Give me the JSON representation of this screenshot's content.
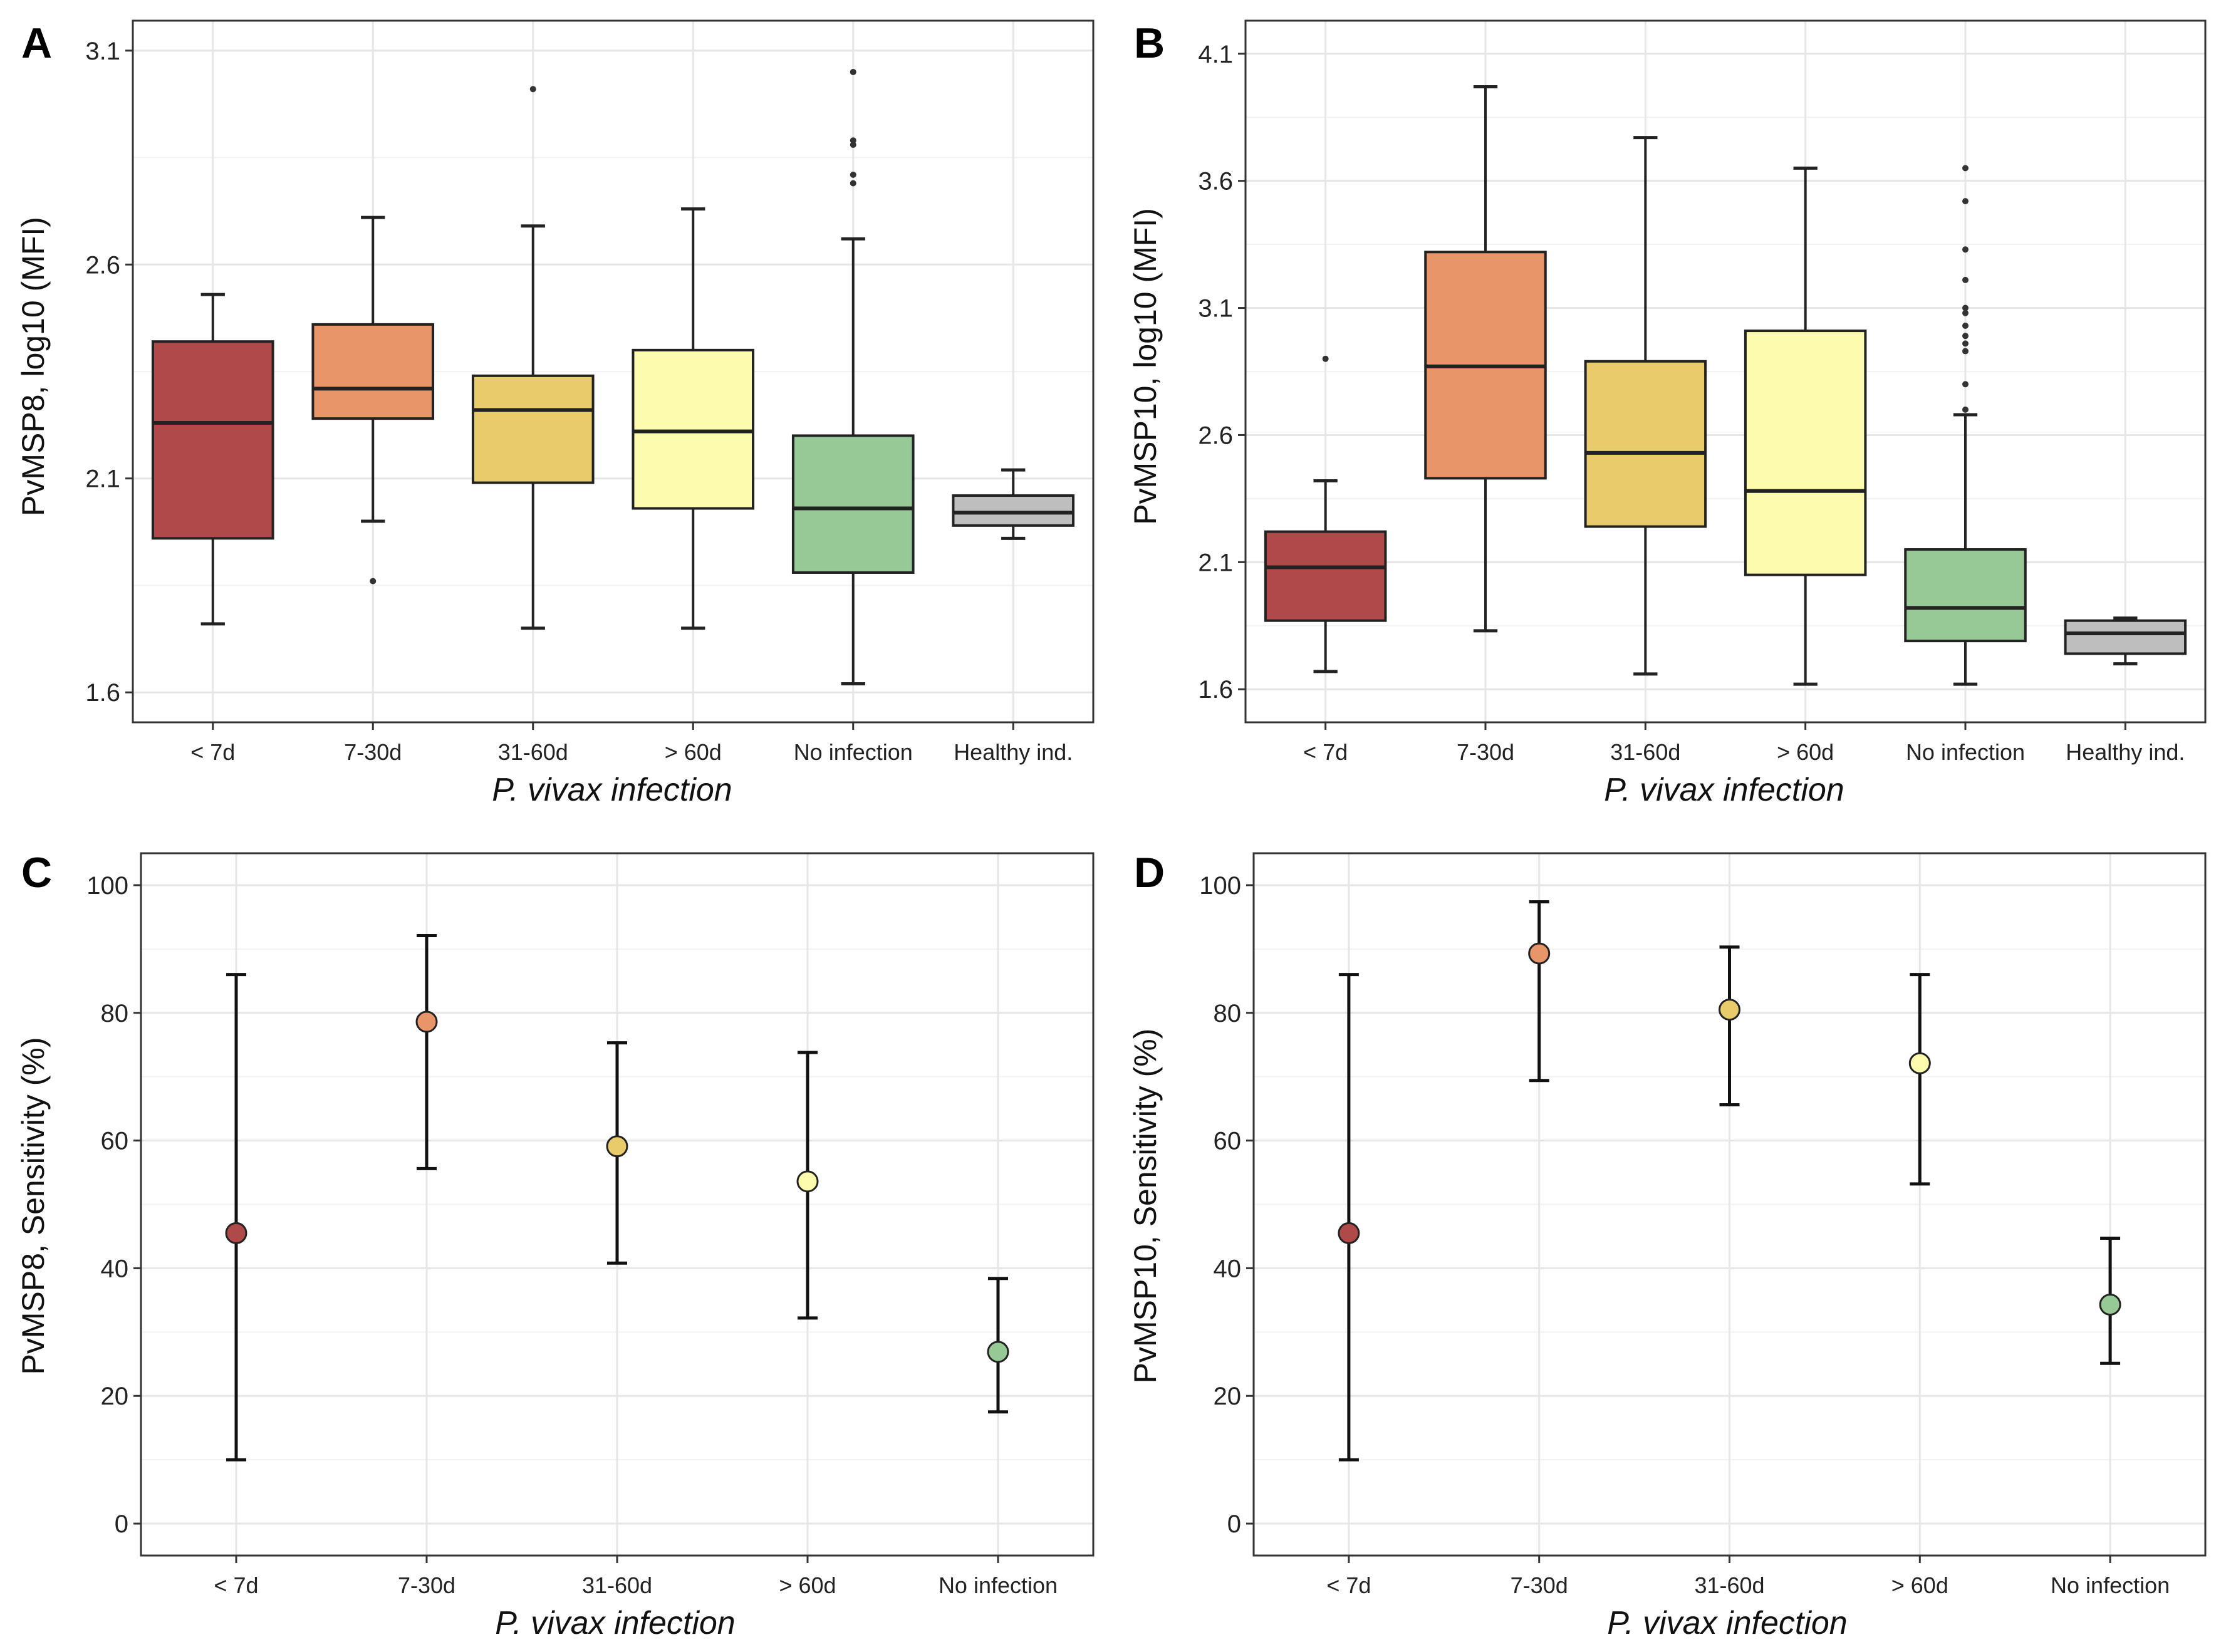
{
  "figure": {
    "panel_letters": [
      "A",
      "B",
      "C",
      "D"
    ]
  },
  "colors": {
    "lt7d": "#B04A4A",
    "d7_30": "#E8956A",
    "d31_60": "#E8CB6A",
    "gt60d": "#FDFCAE",
    "no_infection": "#97C996",
    "healthy": "#BEBEBE",
    "line": "#222222"
  },
  "chart_data": [
    {
      "panel": "A",
      "type": "box",
      "title": "",
      "xlabel": "P. vivax infection",
      "ylabel": "PvMSP8, log10 (MFI)",
      "ylim": [
        1.53,
        3.17
      ],
      "yticks": [
        1.6,
        2.1,
        2.6,
        3.1
      ],
      "ytick_labels": [
        "1.6",
        "2.1",
        "2.6",
        "3.1"
      ],
      "categories": [
        "< 7d",
        "7-30d",
        "31-60d",
        "> 60d",
        "No infection",
        "Healthy ind."
      ],
      "color_keys": [
        "lt7d",
        "d7_30",
        "d31_60",
        "gt60d",
        "no_infection",
        "healthy"
      ],
      "boxes": [
        {
          "whisker_low": 1.76,
          "q1": 1.96,
          "median": 2.23,
          "q3": 2.42,
          "whisker_high": 2.53,
          "outliers": []
        },
        {
          "whisker_low": 2.0,
          "q1": 2.24,
          "median": 2.31,
          "q3": 2.46,
          "whisker_high": 2.71,
          "outliers": [
            1.86
          ]
        },
        {
          "whisker_low": 1.75,
          "q1": 2.09,
          "median": 2.26,
          "q3": 2.34,
          "whisker_high": 2.69,
          "outliers": [
            3.01
          ]
        },
        {
          "whisker_low": 1.75,
          "q1": 2.03,
          "median": 2.21,
          "q3": 2.4,
          "whisker_high": 2.73,
          "outliers": []
        },
        {
          "whisker_low": 1.62,
          "q1": 1.88,
          "median": 2.03,
          "q3": 2.2,
          "whisker_high": 2.66,
          "outliers": [
            2.79,
            2.81,
            2.88,
            2.89,
            3.05
          ]
        },
        {
          "whisker_low": 1.96,
          "q1": 1.99,
          "median": 2.02,
          "q3": 2.06,
          "whisker_high": 2.12,
          "outliers": []
        }
      ]
    },
    {
      "panel": "B",
      "type": "box",
      "title": "",
      "xlabel": "P. vivax infection",
      "ylabel": "PvMSP10, log10 (MFI)",
      "ylim": [
        1.47,
        4.23
      ],
      "yticks": [
        1.6,
        2.1,
        2.6,
        3.1,
        3.6,
        4.1
      ],
      "ytick_labels": [
        "1.6",
        "2.1",
        "2.6",
        "3.1",
        "3.6",
        "4.1"
      ],
      "categories": [
        "< 7d",
        "7-30d",
        "31-60d",
        "> 60d",
        "No infection",
        "Healthy ind."
      ],
      "color_keys": [
        "lt7d",
        "d7_30",
        "d31_60",
        "gt60d",
        "no_infection",
        "healthy"
      ],
      "boxes": [
        {
          "whisker_low": 1.67,
          "q1": 1.87,
          "median": 2.08,
          "q3": 2.22,
          "whisker_high": 2.42,
          "outliers": [
            2.9
          ]
        },
        {
          "whisker_low": 1.83,
          "q1": 2.43,
          "median": 2.87,
          "q3": 3.32,
          "whisker_high": 3.97,
          "outliers": []
        },
        {
          "whisker_low": 1.66,
          "q1": 2.24,
          "median": 2.53,
          "q3": 2.89,
          "whisker_high": 3.77,
          "outliers": []
        },
        {
          "whisker_low": 1.62,
          "q1": 2.05,
          "median": 2.38,
          "q3": 3.01,
          "whisker_high": 3.65,
          "outliers": []
        },
        {
          "whisker_low": 1.62,
          "q1": 1.79,
          "median": 1.92,
          "q3": 2.15,
          "whisker_high": 2.68,
          "outliers": [
            2.7,
            2.8,
            2.93,
            2.96,
            2.99,
            3.03,
            3.08,
            3.1,
            3.21,
            3.33,
            3.52,
            3.65
          ]
        },
        {
          "whisker_low": 1.7,
          "q1": 1.74,
          "median": 1.82,
          "q3": 1.87,
          "whisker_high": 1.88,
          "outliers": []
        }
      ]
    },
    {
      "panel": "C",
      "type": "errorbar",
      "title": "",
      "xlabel": "P. vivax infection",
      "ylabel": "PvMSP8, Sensitivity (%)",
      "ylim": [
        -5,
        105
      ],
      "yticks": [
        0,
        20,
        40,
        60,
        80,
        100
      ],
      "ytick_labels": [
        "0",
        "20",
        "40",
        "60",
        "80",
        "100"
      ],
      "categories": [
        "< 7d",
        "7-30d",
        "31-60d",
        "> 60d",
        "No infection"
      ],
      "color_keys": [
        "lt7d",
        "d7_30",
        "d31_60",
        "gt60d",
        "no_infection"
      ],
      "points": [
        {
          "estimate": 45.5,
          "lower": 10.0,
          "upper": 86.0
        },
        {
          "estimate": 78.6,
          "lower": 55.6,
          "upper": 92.1
        },
        {
          "estimate": 59.1,
          "lower": 40.8,
          "upper": 75.3
        },
        {
          "estimate": 53.6,
          "lower": 32.2,
          "upper": 73.8
        },
        {
          "estimate": 26.9,
          "lower": 17.5,
          "upper": 38.4
        }
      ]
    },
    {
      "panel": "D",
      "type": "errorbar",
      "title": "",
      "xlabel": "P. vivax infection",
      "ylabel": "PvMSP10, Sensitivity (%)",
      "ylim": [
        -5,
        105
      ],
      "yticks": [
        0,
        20,
        40,
        60,
        80,
        100
      ],
      "ytick_labels": [
        "0",
        "20",
        "40",
        "60",
        "80",
        "100"
      ],
      "categories": [
        "< 7d",
        "7-30d",
        "31-60d",
        "> 60d",
        "No infection"
      ],
      "color_keys": [
        "lt7d",
        "d7_30",
        "d31_60",
        "gt60d",
        "no_infection"
      ],
      "points": [
        {
          "estimate": 45.5,
          "lower": 10.0,
          "upper": 86.0
        },
        {
          "estimate": 89.3,
          "lower": 69.4,
          "upper": 97.4
        },
        {
          "estimate": 80.5,
          "lower": 65.6,
          "upper": 90.3
        },
        {
          "estimate": 72.1,
          "lower": 53.2,
          "upper": 86.0
        },
        {
          "estimate": 34.3,
          "lower": 25.1,
          "upper": 44.7
        }
      ]
    }
  ]
}
